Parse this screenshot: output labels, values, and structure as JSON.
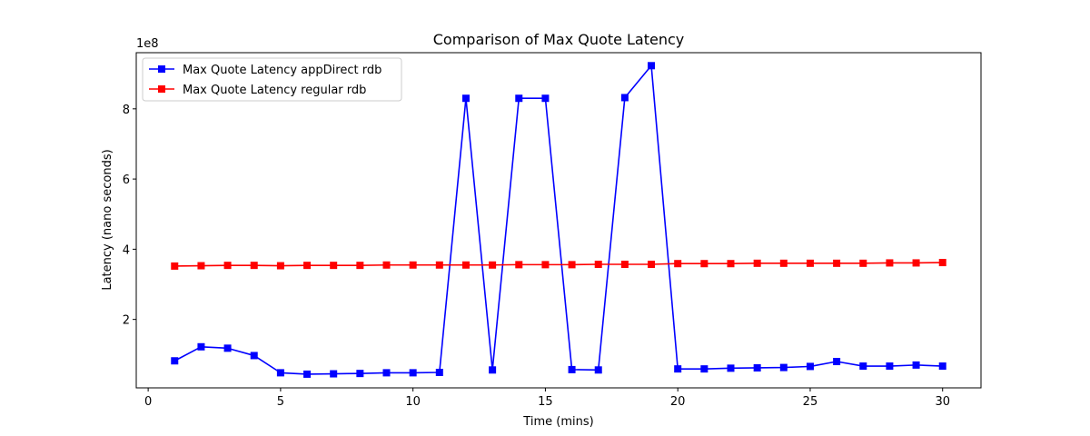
{
  "chart_data": {
    "type": "line",
    "title": "Comparison of Max Quote Latency",
    "xlabel": "Time (mins)",
    "ylabel": "Latency (nano seconds)",
    "y_scale_label": "1e8",
    "xlim": [
      -0.45,
      31.45
    ],
    "ylim": [
      0.05,
      9.6
    ],
    "x_ticks": [
      0,
      5,
      10,
      15,
      20,
      25,
      30
    ],
    "y_ticks": [
      2,
      4,
      6,
      8
    ],
    "grid": false,
    "legend_position": "upper-left",
    "x": [
      1,
      2,
      3,
      4,
      5,
      6,
      7,
      8,
      9,
      10,
      11,
      12,
      13,
      14,
      15,
      16,
      17,
      18,
      19,
      20,
      21,
      22,
      23,
      24,
      25,
      26,
      27,
      28,
      29,
      30
    ],
    "series": [
      {
        "name": "Max Quote Latency appDirect rdb",
        "color": "#0000ff",
        "marker": "square",
        "values": [
          0.82,
          1.22,
          1.18,
          0.97,
          0.48,
          0.44,
          0.45,
          0.46,
          0.48,
          0.48,
          0.49,
          8.3,
          0.56,
          8.3,
          8.3,
          0.57,
          0.56,
          8.32,
          9.23,
          0.59,
          0.59,
          0.61,
          0.62,
          0.63,
          0.66,
          0.8,
          0.67,
          0.67,
          0.7,
          0.67
        ]
      },
      {
        "name": "Max Quote Latency regular rdb",
        "color": "#ff0000",
        "marker": "square",
        "values": [
          3.52,
          3.53,
          3.54,
          3.54,
          3.53,
          3.54,
          3.54,
          3.54,
          3.55,
          3.55,
          3.55,
          3.55,
          3.55,
          3.56,
          3.56,
          3.56,
          3.57,
          3.57,
          3.57,
          3.59,
          3.59,
          3.59,
          3.6,
          3.6,
          3.6,
          3.6,
          3.6,
          3.61,
          3.61,
          3.62
        ]
      }
    ]
  }
}
